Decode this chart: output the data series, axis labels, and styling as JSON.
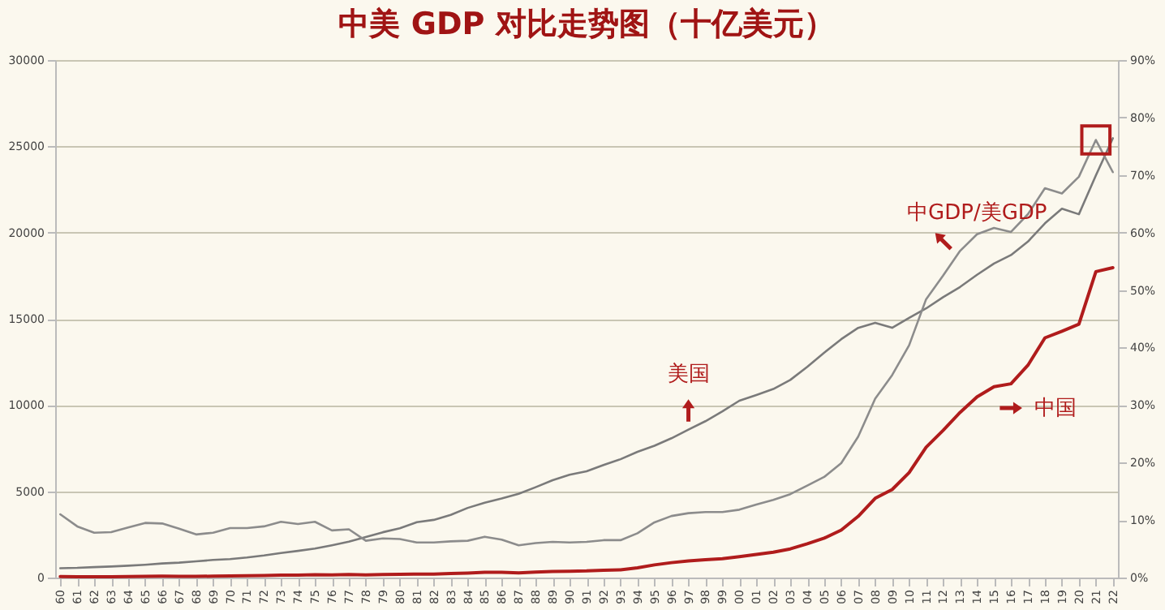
{
  "chart_data": {
    "type": "line",
    "title": "中美 GDP 对比走势图（十亿美元）",
    "categories": [
      "60",
      "61",
      "62",
      "63",
      "64",
      "65",
      "66",
      "67",
      "68",
      "69",
      "70",
      "71",
      "72",
      "73",
      "74",
      "75",
      "76",
      "77",
      "78",
      "79",
      "80",
      "81",
      "82",
      "83",
      "84",
      "85",
      "86",
      "87",
      "88",
      "89",
      "90",
      "91",
      "92",
      "93",
      "94",
      "95",
      "96",
      "97",
      "98",
      "99",
      "00",
      "01",
      "02",
      "03",
      "04",
      "05",
      "06",
      "07",
      "08",
      "09",
      "10",
      "11",
      "12",
      "13",
      "14",
      "15",
      "16",
      "17",
      "18",
      "19",
      "20",
      "21",
      "22"
    ],
    "series": [
      {
        "name": "美国",
        "color": "#7a7a7a",
        "values": [
          543,
          563,
          605,
          639,
          686,
          744,
          815,
          862,
          943,
          1020,
          1073,
          1165,
          1279,
          1425,
          1545,
          1685,
          1873,
          2082,
          2352,
          2627,
          2857,
          3207,
          3344,
          3634,
          4038,
          4339,
          4580,
          4855,
          5236,
          5642,
          5963,
          6158,
          6520,
          6859,
          7287,
          7640,
          8073,
          8578,
          9063,
          9631,
          10251,
          10582,
          10929,
          11457,
          12217,
          13039,
          13816,
          14474,
          14770,
          14478,
          15049,
          15600,
          16254,
          16843,
          17551,
          18206,
          18695,
          19477,
          20533,
          21381,
          21060,
          23315,
          25464
        ]
      },
      {
        "name": "中国",
        "color": "#b01c1c",
        "values": [
          60,
          50,
          47,
          51,
          60,
          70,
          77,
          73,
          71,
          80,
          93,
          100,
          114,
          139,
          144,
          163,
          154,
          175,
          150,
          178,
          191,
          196,
          205,
          231,
          260,
          310,
          301,
          273,
          312,
          348,
          361,
          383,
          427,
          445,
          564,
          735,
          864,
          962,
          1029,
          1094,
          1211,
          1339,
          1471,
          1660,
          1955,
          2286,
          2752,
          3550,
          4594,
          5102,
          6087,
          7552,
          8532,
          9570,
          10476,
          11062,
          11233,
          12310,
          13895,
          14280,
          14688,
          17734,
          17963
        ]
      },
      {
        "name": "中GDP/美GDP",
        "color": "#8c8c8c",
        "axis": "y2",
        "values": [
          11.0,
          8.9,
          7.8,
          7.9,
          8.7,
          9.5,
          9.4,
          8.5,
          7.5,
          7.8,
          8.6,
          8.6,
          8.9,
          9.7,
          9.3,
          9.7,
          8.2,
          8.4,
          6.4,
          6.8,
          6.7,
          6.1,
          6.1,
          6.3,
          6.4,
          7.1,
          6.6,
          5.6,
          6.0,
          6.2,
          6.1,
          6.2,
          6.5,
          6.5,
          7.7,
          9.6,
          10.7,
          11.2,
          11.4,
          11.4,
          11.8,
          12.7,
          13.5,
          14.5,
          16.0,
          17.5,
          19.9,
          24.5,
          31.1,
          35.2,
          40.4,
          48.4,
          52.5,
          56.8,
          59.7,
          60.8,
          60.1,
          63.2,
          67.7,
          66.8,
          69.7,
          76.1,
          70.5
        ]
      }
    ],
    "ylim": [
      0,
      30000
    ],
    "yticks": [
      0,
      5000,
      10000,
      15000,
      20000,
      25000,
      30000
    ],
    "y2lim": [
      0,
      90
    ],
    "y2ticks": [
      {
        "value": 0,
        "label": "0%"
      },
      {
        "value": 10,
        "label": "10%"
      },
      {
        "value": 20,
        "label": "20%"
      },
      {
        "value": 30,
        "label": "30%"
      },
      {
        "value": 40,
        "label": "40%"
      },
      {
        "value": 50,
        "label": "50%"
      },
      {
        "value": 60,
        "label": "60%"
      },
      {
        "value": 70,
        "label": "70%"
      },
      {
        "value": 80,
        "label": "80%"
      },
      {
        "value": 90,
        "label": "90%"
      }
    ],
    "grid": "y"
  }
}
